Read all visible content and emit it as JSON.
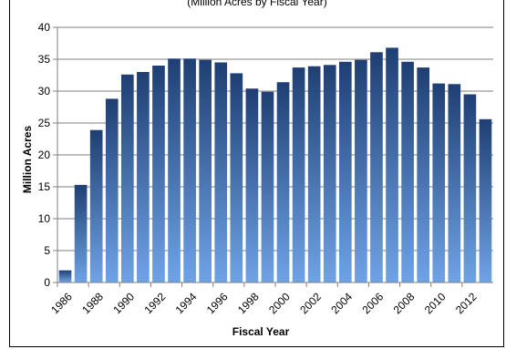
{
  "chart_data": {
    "type": "bar",
    "title": "(Million Acres by Fiscal Year)",
    "xlabel": "Fiscal Year",
    "ylabel": "Million Acres",
    "ylim": [
      0,
      40
    ],
    "yticks": [
      0,
      5,
      10,
      15,
      20,
      25,
      30,
      35,
      40
    ],
    "grid": true,
    "legend": "none",
    "colors": {
      "bar_top": "#1f3f73",
      "bar_bottom": "#6fa3e6",
      "grid": "#7f7f7f",
      "axis": "#7f7f7f"
    },
    "categories": [
      "1986",
      "1987",
      "1988",
      "1989",
      "1990",
      "1991",
      "1992",
      "1993",
      "1994",
      "1995",
      "1996",
      "1997",
      "1998",
      "1999",
      "2000",
      "2001",
      "2002",
      "2003",
      "2004",
      "2005",
      "2006",
      "2007",
      "2008",
      "2009",
      "2010",
      "2011",
      "2012",
      "2013"
    ],
    "tick_labels": [
      "1986",
      "1988",
      "1990",
      "1992",
      "1994",
      "1996",
      "1998",
      "2000",
      "2002",
      "2004",
      "2006",
      "2008",
      "2010",
      "2012"
    ],
    "values": [
      1.9,
      15.3,
      23.9,
      28.8,
      32.6,
      33.0,
      34.0,
      35.1,
      35.1,
      34.9,
      34.5,
      32.8,
      30.4,
      29.9,
      31.4,
      33.7,
      33.9,
      34.1,
      34.6,
      34.9,
      36.1,
      36.8,
      34.6,
      33.7,
      31.2,
      31.1,
      29.5,
      25.6
    ]
  }
}
